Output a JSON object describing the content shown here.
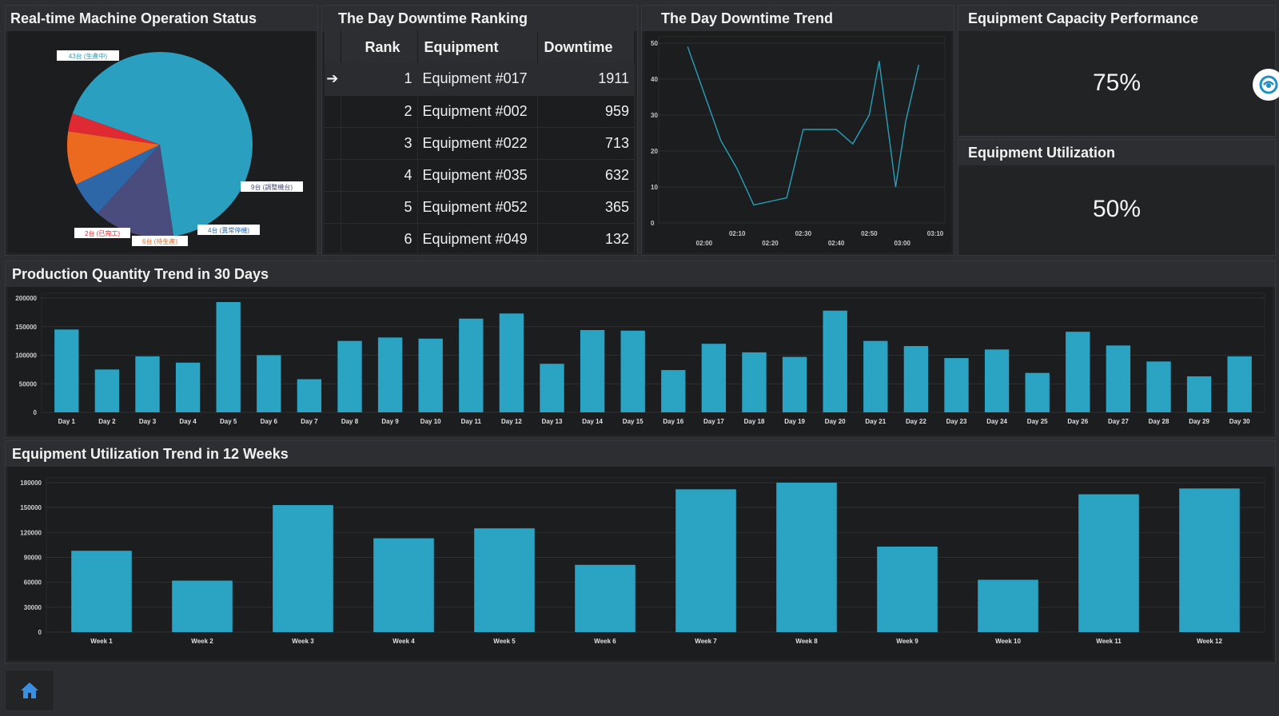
{
  "panels": {
    "machine_status": {
      "title": "Real-time Machine Operation Status"
    },
    "ranking": {
      "title": "The Day Downtime Ranking"
    },
    "downtime_trend": {
      "title": "The Day Downtime Trend"
    },
    "capacity": {
      "title": "Equipment Capacity Performance",
      "value": "75%"
    },
    "utilization": {
      "title": "Equipment Utilization",
      "value": "50%"
    },
    "production_trend": {
      "title": "Production Quantity Trend in 30 Days"
    },
    "utilization_trend": {
      "title": "Equipment Utilization Trend in 12 Weeks"
    }
  },
  "ranking": {
    "headers": [
      "Rank",
      "Equipment",
      "Downtime"
    ],
    "rows": [
      {
        "rank": "1",
        "equipment": "Equipment #017",
        "downtime": "1911"
      },
      {
        "rank": "2",
        "equipment": "Equipment #002",
        "downtime": "959"
      },
      {
        "rank": "3",
        "equipment": "Equipment #022",
        "downtime": "713"
      },
      {
        "rank": "4",
        "equipment": "Equipment #035",
        "downtime": "632"
      },
      {
        "rank": "5",
        "equipment": "Equipment #052",
        "downtime": "365"
      },
      {
        "rank": "6",
        "equipment": "Equipment #049",
        "downtime": "132"
      }
    ]
  },
  "colors": {
    "bar": "#2ba3c2",
    "pie_producing": "#2b9fc0",
    "pie_tuning": "#494c7c",
    "pie_abnormal": "#2e67a8",
    "pie_idle": "#ec6a1f",
    "pie_finished": "#e02a33",
    "line": "#27a0b9"
  },
  "icons": {
    "floating": "assistant-icon",
    "home": "home-icon"
  },
  "chart_data": [
    {
      "type": "pie",
      "labels": [
        "43台 (生產中)",
        "9台 (調整機台)",
        "4台 (異常停機)",
        "6台 (待生產)",
        "2台 (已完工)"
      ],
      "values": [
        43,
        9,
        4,
        6,
        2
      ]
    },
    {
      "type": "line",
      "x_ticks_lower": [
        "02:00",
        "02:20",
        "02:40",
        "03:00"
      ],
      "x_ticks_upper": [
        "02:10",
        "02:30",
        "02:50",
        "03:10"
      ],
      "x": [
        "01:55",
        "02:00",
        "02:05",
        "02:10",
        "02:15",
        "02:20",
        "02:25",
        "02:30",
        "02:35",
        "02:40",
        "02:45",
        "02:50",
        "02:53",
        "02:58",
        "03:01",
        "03:05"
      ],
      "values": [
        49,
        36,
        23,
        15,
        5,
        6,
        7,
        26,
        26,
        26,
        22,
        30,
        45,
        10,
        28,
        44
      ],
      "ylim": [
        0,
        50
      ],
      "yticks": [
        0,
        10,
        20,
        30,
        40,
        50
      ]
    },
    {
      "type": "bar",
      "categories": [
        "Day 1",
        "Day 2",
        "Day 3",
        "Day 4",
        "Day 5",
        "Day 6",
        "Day 7",
        "Day 8",
        "Day 9",
        "Day 10",
        "Day 11",
        "Day 12",
        "Day 13",
        "Day 14",
        "Day 15",
        "Day 16",
        "Day 17",
        "Day 18",
        "Day 19",
        "Day 20",
        "Day 21",
        "Day 22",
        "Day 23",
        "Day 24",
        "Day 25",
        "Day 26",
        "Day 27",
        "Day 28",
        "Day 29",
        "Day 30"
      ],
      "values": [
        145000,
        75000,
        98000,
        87000,
        193000,
        100000,
        58000,
        125000,
        131000,
        129000,
        164000,
        173000,
        85000,
        144000,
        143000,
        74000,
        120000,
        105000,
        97000,
        178000,
        125000,
        116000,
        95000,
        110000,
        69000,
        141000,
        117000,
        89000,
        63000,
        98000
      ],
      "ylim": [
        0,
        200000
      ],
      "yticks": [
        0,
        50000,
        100000,
        150000,
        200000
      ]
    },
    {
      "type": "bar",
      "categories": [
        "Week 1",
        "Week 2",
        "Week 3",
        "Week 4",
        "Week 5",
        "Week 6",
        "Week 7",
        "Week 8",
        "Week 9",
        "Week 10",
        "Week 11",
        "Week 12"
      ],
      "values": [
        98000,
        62000,
        153000,
        113000,
        125000,
        81000,
        172000,
        180000,
        103000,
        63000,
        166000,
        173000
      ],
      "ylim": [
        0,
        180000
      ],
      "yticks": [
        0,
        30000,
        60000,
        90000,
        120000,
        150000,
        180000
      ]
    }
  ]
}
